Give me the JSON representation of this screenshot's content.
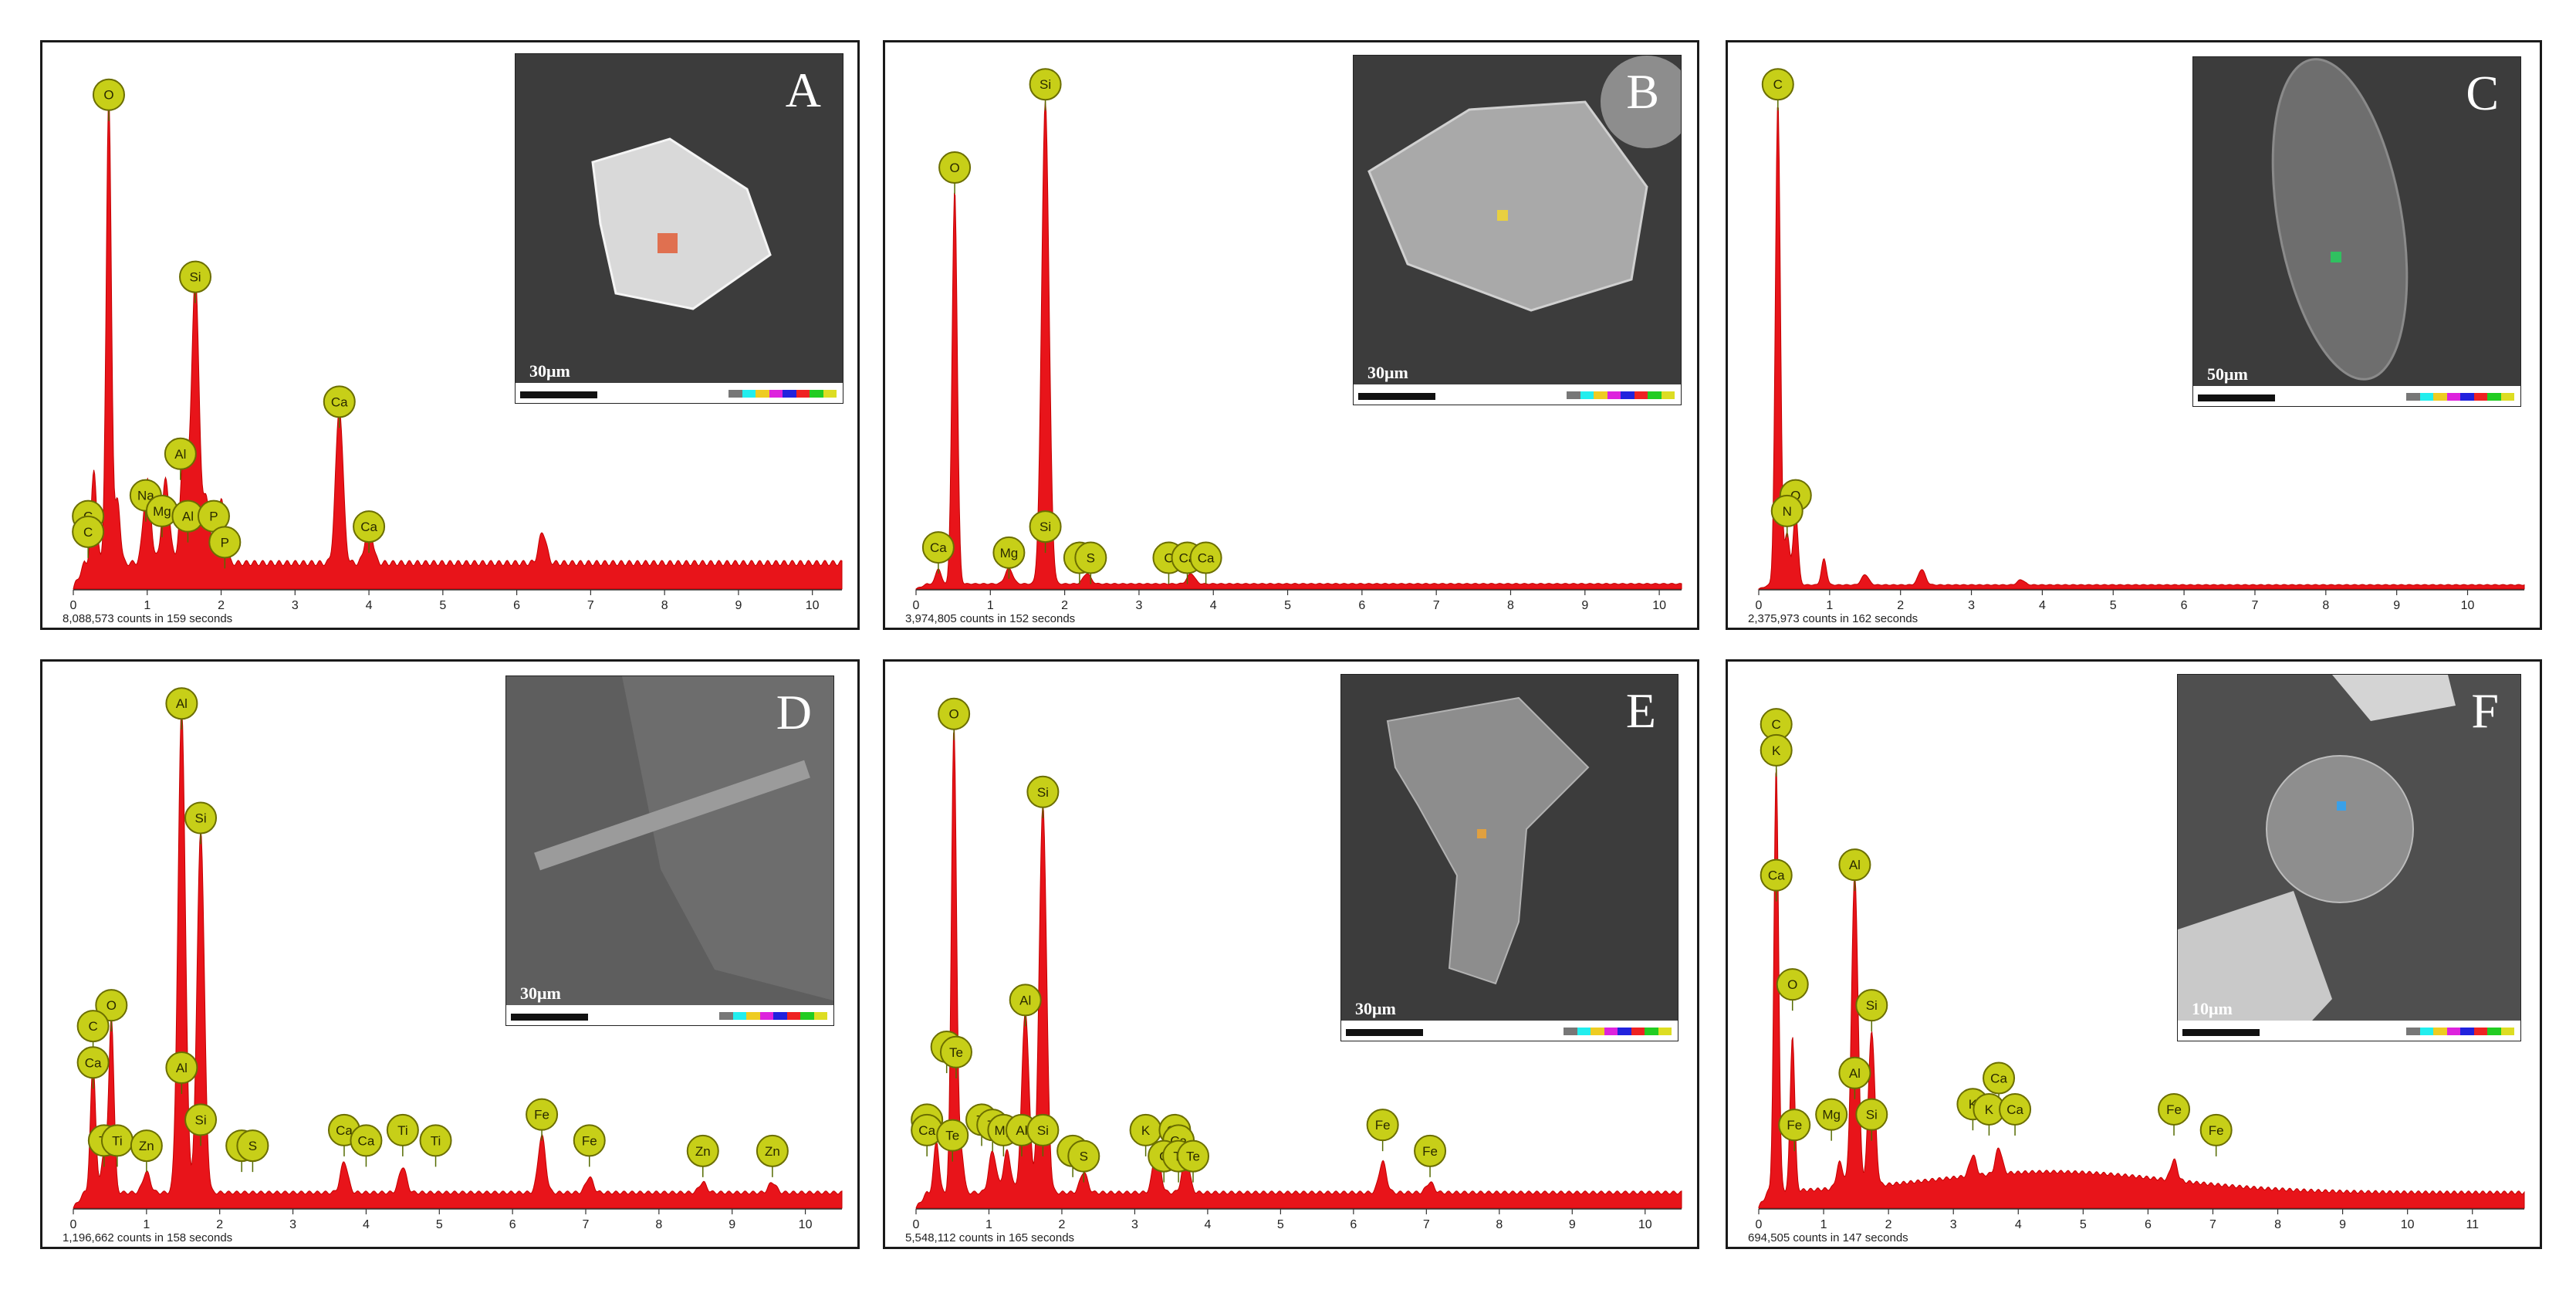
{
  "chart_data": [
    {
      "panel_label": "A",
      "type": "line",
      "fill_color": "#e8141a",
      "counts_text": "8,088,573 counts in 159 seconds",
      "scale_text": "30μm",
      "xlim": [
        0,
        10.4
      ],
      "ylim": [
        0,
        100
      ],
      "x_ticks": [
        "0",
        "1",
        "2",
        "3",
        "4",
        "5",
        "6",
        "7",
        "8",
        "9",
        "10"
      ],
      "peaks": [
        {
          "x": 0.28,
          "y": 18
        },
        {
          "x": 0.48,
          "y": 90
        },
        {
          "x": 0.6,
          "y": 12
        },
        {
          "x": 1.0,
          "y": 16
        },
        {
          "x": 1.25,
          "y": 16
        },
        {
          "x": 1.5,
          "y": 22
        },
        {
          "x": 1.65,
          "y": 55
        },
        {
          "x": 1.8,
          "y": 12
        },
        {
          "x": 2.0,
          "y": 12
        },
        {
          "x": 3.6,
          "y": 30
        },
        {
          "x": 4.0,
          "y": 8
        },
        {
          "x": 6.35,
          "y": 6
        }
      ],
      "baseline": 5,
      "markers": [
        {
          "label": "O",
          "x": 0.48,
          "y": 95
        },
        {
          "label": "Si",
          "x": 1.65,
          "y": 60
        },
        {
          "label": "Ca",
          "x": 3.6,
          "y": 36
        },
        {
          "label": "Al",
          "x": 1.45,
          "y": 26
        },
        {
          "label": "Na",
          "x": 0.98,
          "y": 18
        },
        {
          "label": "Mg",
          "x": 1.2,
          "y": 15
        },
        {
          "label": "Al",
          "x": 1.55,
          "y": 14
        },
        {
          "label": "P",
          "x": 1.9,
          "y": 14
        },
        {
          "label": "C",
          "x": 0.2,
          "y": 14
        },
        {
          "label": "C",
          "x": 0.2,
          "y": 11
        },
        {
          "label": "Ca",
          "x": 4.0,
          "y": 12
        },
        {
          "label": "P",
          "x": 2.05,
          "y": 9
        }
      ]
    },
    {
      "panel_label": "B",
      "type": "line",
      "fill_color": "#e8141a",
      "counts_text": "3,974,805 counts in 152 seconds",
      "scale_text": "30μm",
      "xlim": [
        0,
        10.3
      ],
      "ylim": [
        0,
        100
      ],
      "x_ticks": [
        "0",
        "1",
        "2",
        "3",
        "4",
        "5",
        "6",
        "7",
        "8",
        "9",
        "10"
      ],
      "peaks": [
        {
          "x": 0.3,
          "y": 3
        },
        {
          "x": 0.52,
          "y": 76
        },
        {
          "x": 1.25,
          "y": 3
        },
        {
          "x": 1.74,
          "y": 93
        },
        {
          "x": 2.3,
          "y": 2
        },
        {
          "x": 3.7,
          "y": 2
        }
      ],
      "baseline": 1,
      "markers": [
        {
          "label": "Si",
          "x": 1.74,
          "y": 97
        },
        {
          "label": "O",
          "x": 0.52,
          "y": 81
        },
        {
          "label": "Si",
          "x": 1.74,
          "y": 12
        },
        {
          "label": "Ca",
          "x": 0.3,
          "y": 8
        },
        {
          "label": "Mg",
          "x": 1.25,
          "y": 7
        },
        {
          "label": "C",
          "x": 2.2,
          "y": 6
        },
        {
          "label": "S",
          "x": 2.35,
          "y": 6
        },
        {
          "label": "C",
          "x": 3.4,
          "y": 6
        },
        {
          "label": "Ca",
          "x": 3.65,
          "y": 6
        },
        {
          "label": "Ca",
          "x": 3.9,
          "y": 6
        }
      ]
    },
    {
      "panel_label": "C",
      "type": "line",
      "fill_color": "#e8141a",
      "counts_text": "2,375,973 counts in 162 seconds",
      "scale_text": "50μm",
      "xlim": [
        0,
        10.8
      ],
      "ylim": [
        0,
        100
      ],
      "x_ticks": [
        "0",
        "1",
        "2",
        "3",
        "4",
        "5",
        "6",
        "7",
        "8",
        "9",
        "10"
      ],
      "peaks": [
        {
          "x": 0.27,
          "y": 93
        },
        {
          "x": 0.4,
          "y": 10
        },
        {
          "x": 0.52,
          "y": 14
        },
        {
          "x": 0.92,
          "y": 5
        },
        {
          "x": 1.5,
          "y": 2
        },
        {
          "x": 2.3,
          "y": 3
        },
        {
          "x": 3.7,
          "y": 1
        }
      ],
      "baseline": 0.8,
      "markers": [
        {
          "label": "C",
          "x": 0.27,
          "y": 97
        },
        {
          "label": "O",
          "x": 0.52,
          "y": 18
        },
        {
          "label": "N",
          "x": 0.4,
          "y": 15
        }
      ]
    },
    {
      "panel_label": "D",
      "type": "line",
      "fill_color": "#e8141a",
      "counts_text": "1,196,662 counts in 158 seconds",
      "scale_text": "30μm",
      "xlim": [
        0,
        10.5
      ],
      "ylim": [
        0,
        100
      ],
      "x_ticks": [
        "0",
        "1",
        "2",
        "3",
        "4",
        "5",
        "6",
        "7",
        "8",
        "9",
        "10"
      ],
      "peaks": [
        {
          "x": 0.27,
          "y": 25
        },
        {
          "x": 0.42,
          "y": 8
        },
        {
          "x": 0.52,
          "y": 34
        },
        {
          "x": 1.0,
          "y": 4
        },
        {
          "x": 1.48,
          "y": 93
        },
        {
          "x": 1.74,
          "y": 70
        },
        {
          "x": 3.7,
          "y": 6
        },
        {
          "x": 4.5,
          "y": 5
        },
        {
          "x": 6.4,
          "y": 11
        },
        {
          "x": 7.05,
          "y": 3
        },
        {
          "x": 8.6,
          "y": 2
        },
        {
          "x": 9.55,
          "y": 2
        }
      ],
      "baseline": 3,
      "markers": [
        {
          "label": "Al",
          "x": 1.48,
          "y": 97
        },
        {
          "label": "Si",
          "x": 1.74,
          "y": 75
        },
        {
          "label": "O",
          "x": 0.52,
          "y": 39
        },
        {
          "label": "C",
          "x": 0.27,
          "y": 35
        },
        {
          "label": "Ca",
          "x": 0.27,
          "y": 28
        },
        {
          "label": "Al",
          "x": 1.48,
          "y": 27
        },
        {
          "label": "Si",
          "x": 1.74,
          "y": 17
        },
        {
          "label": "Ti",
          "x": 0.42,
          "y": 13
        },
        {
          "label": "Ti",
          "x": 0.6,
          "y": 13
        },
        {
          "label": "Zn",
          "x": 1.0,
          "y": 12
        },
        {
          "label": "C",
          "x": 2.3,
          "y": 12
        },
        {
          "label": "S",
          "x": 2.45,
          "y": 12
        },
        {
          "label": "Ca",
          "x": 3.7,
          "y": 15
        },
        {
          "label": "Ca",
          "x": 4.0,
          "y": 13
        },
        {
          "label": "Ti",
          "x": 4.5,
          "y": 15
        },
        {
          "label": "Ti",
          "x": 4.95,
          "y": 13
        },
        {
          "label": "Fe",
          "x": 6.4,
          "y": 18
        },
        {
          "label": "Fe",
          "x": 7.05,
          "y": 13
        },
        {
          "label": "Zn",
          "x": 8.6,
          "y": 11
        },
        {
          "label": "Zn",
          "x": 9.55,
          "y": 11
        }
      ]
    },
    {
      "panel_label": "E",
      "type": "line",
      "fill_color": "#e8141a",
      "counts_text": "5,548,112 counts in 165 seconds",
      "scale_text": "30μm",
      "xlim": [
        0,
        10.5
      ],
      "ylim": [
        0,
        100
      ],
      "x_ticks": [
        "0",
        "1",
        "2",
        "3",
        "4",
        "5",
        "6",
        "7",
        "8",
        "9",
        "10"
      ],
      "peaks": [
        {
          "x": 0.28,
          "y": 10
        },
        {
          "x": 0.52,
          "y": 90
        },
        {
          "x": 0.62,
          "y": 8
        },
        {
          "x": 1.05,
          "y": 8
        },
        {
          "x": 1.25,
          "y": 8
        },
        {
          "x": 1.5,
          "y": 35
        },
        {
          "x": 1.74,
          "y": 75
        },
        {
          "x": 2.3,
          "y": 4
        },
        {
          "x": 3.3,
          "y": 9
        },
        {
          "x": 3.7,
          "y": 7
        },
        {
          "x": 6.4,
          "y": 6
        },
        {
          "x": 7.05,
          "y": 2
        }
      ],
      "baseline": 3,
      "markers": [
        {
          "label": "O",
          "x": 0.52,
          "y": 95
        },
        {
          "label": "Si",
          "x": 1.74,
          "y": 80
        },
        {
          "label": "Al",
          "x": 1.5,
          "y": 40
        },
        {
          "label": "C",
          "x": 0.42,
          "y": 31
        },
        {
          "label": "Te",
          "x": 0.55,
          "y": 30
        },
        {
          "label": "C",
          "x": 0.15,
          "y": 17
        },
        {
          "label": "Ca",
          "x": 0.15,
          "y": 15
        },
        {
          "label": "Te",
          "x": 0.5,
          "y": 14
        },
        {
          "label": "Ti",
          "x": 0.9,
          "y": 17
        },
        {
          "label": "Ti",
          "x": 1.05,
          "y": 16
        },
        {
          "label": "Mg",
          "x": 1.2,
          "y": 15
        },
        {
          "label": "Al",
          "x": 1.45,
          "y": 15
        },
        {
          "label": "Si",
          "x": 1.74,
          "y": 15
        },
        {
          "label": "C",
          "x": 2.15,
          "y": 11
        },
        {
          "label": "S",
          "x": 2.3,
          "y": 10
        },
        {
          "label": "K",
          "x": 3.15,
          "y": 15
        },
        {
          "label": "Ca",
          "x": 3.55,
          "y": 15
        },
        {
          "label": "Ca",
          "x": 3.6,
          "y": 13
        },
        {
          "label": "C",
          "x": 3.4,
          "y": 10
        },
        {
          "label": "Ti",
          "x": 3.6,
          "y": 10
        },
        {
          "label": "Te",
          "x": 3.8,
          "y": 10
        },
        {
          "label": "Fe",
          "x": 6.4,
          "y": 16
        },
        {
          "label": "Fe",
          "x": 7.05,
          "y": 11
        }
      ]
    },
    {
      "panel_label": "F",
      "type": "line",
      "fill_color": "#e8141a",
      "counts_text": "694,505 counts in 147 seconds",
      "scale_text": "10μm",
      "xlim": [
        0,
        11.8
      ],
      "ylim": [
        0,
        100
      ],
      "x_ticks": [
        "0",
        "1",
        "2",
        "3",
        "4",
        "5",
        "6",
        "7",
        "8",
        "9",
        "10",
        "11"
      ],
      "peaks": [
        {
          "x": 0.27,
          "y": 82
        },
        {
          "x": 0.52,
          "y": 30
        },
        {
          "x": 1.25,
          "y": 5
        },
        {
          "x": 1.48,
          "y": 60
        },
        {
          "x": 1.74,
          "y": 30
        },
        {
          "x": 3.3,
          "y": 4
        },
        {
          "x": 3.7,
          "y": 5
        },
        {
          "x": 6.4,
          "y": 4
        }
      ],
      "baseline": 3,
      "markers": [
        {
          "label": "C",
          "x": 0.27,
          "y": 93
        },
        {
          "label": "K",
          "x": 0.27,
          "y": 88
        },
        {
          "label": "Al",
          "x": 1.48,
          "y": 66
        },
        {
          "label": "Ca",
          "x": 0.27,
          "y": 64
        },
        {
          "label": "Si",
          "x": 1.74,
          "y": 39
        },
        {
          "label": "O",
          "x": 0.52,
          "y": 43
        },
        {
          "label": "Al",
          "x": 1.48,
          "y": 26
        },
        {
          "label": "Mg",
          "x": 1.12,
          "y": 18
        },
        {
          "label": "Si",
          "x": 1.74,
          "y": 18
        },
        {
          "label": "Fe",
          "x": 0.55,
          "y": 16
        },
        {
          "label": "K",
          "x": 3.3,
          "y": 20
        },
        {
          "label": "Ca",
          "x": 3.7,
          "y": 25
        },
        {
          "label": "K",
          "x": 3.55,
          "y": 19
        },
        {
          "label": "Ca",
          "x": 3.95,
          "y": 19
        },
        {
          "label": "Fe",
          "x": 6.4,
          "y": 19
        },
        {
          "label": "Fe",
          "x": 7.05,
          "y": 15
        }
      ]
    }
  ]
}
